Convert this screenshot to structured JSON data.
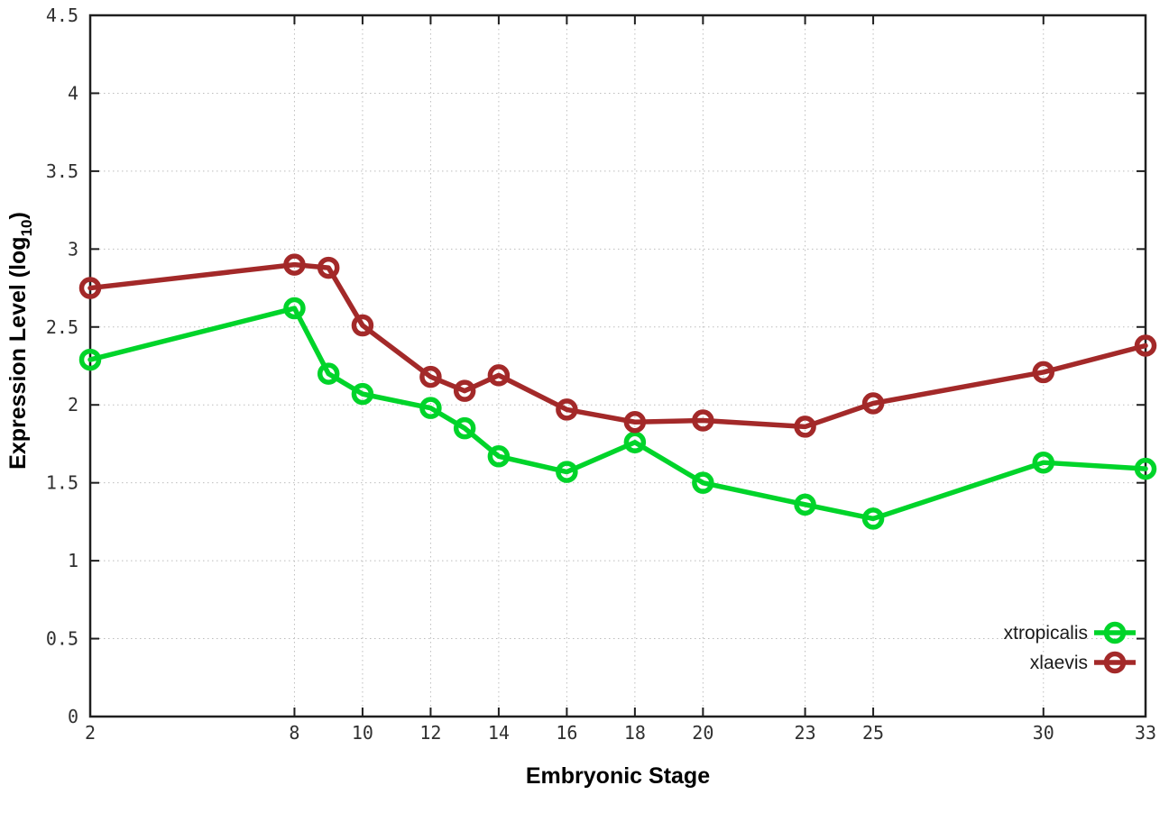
{
  "figure": {
    "background": "#ffffff",
    "border_color": "#1f1f1f",
    "grid_color": "#bdbdbd",
    "tick_label_color": "#303030"
  },
  "chart_data": {
    "type": "line",
    "title": "",
    "xlabel": "Embryonic Stage",
    "ylabel": "Expression Level (log10)",
    "ylabel_parts": {
      "pre": "Expression Level (log",
      "sub": "10",
      "post": ")"
    },
    "x": [
      2,
      8,
      9,
      10,
      12,
      13,
      14,
      16,
      18,
      20,
      23,
      25,
      30,
      33
    ],
    "series": [
      {
        "name": "xtropicalis",
        "color": "#00d42a",
        "values": [
          2.29,
          2.62,
          2.2,
          2.07,
          1.98,
          1.85,
          1.67,
          1.57,
          1.76,
          1.5,
          1.36,
          1.27,
          1.63,
          1.59
        ]
      },
      {
        "name": "xlaevis",
        "color": "#a32929",
        "values": [
          2.75,
          2.9,
          2.88,
          2.51,
          2.18,
          2.09,
          2.19,
          1.97,
          1.89,
          1.9,
          1.86,
          2.01,
          2.21,
          2.38
        ]
      }
    ],
    "xlim": [
      2,
      33
    ],
    "ylim": [
      0,
      4.5
    ],
    "x_ticks": [
      2,
      8,
      10,
      12,
      14,
      16,
      18,
      20,
      23,
      25,
      30,
      33
    ],
    "x_tick_labels": [
      "2",
      "8",
      "10",
      "12",
      "14",
      "16",
      "18",
      "20",
      "23",
      "25",
      "30",
      "33"
    ],
    "y_ticks": [
      0,
      0.5,
      1,
      1.5,
      2,
      2.5,
      3,
      3.5,
      4,
      4.5
    ],
    "y_tick_labels": [
      "0",
      "0.5",
      "1",
      "1.5",
      "2",
      "2.5",
      "3",
      "3.5",
      "4",
      "4.5"
    ],
    "grid": true,
    "legend": {
      "position": "bottom-right",
      "entries": [
        "xtropicalis",
        "xlaevis"
      ]
    }
  }
}
